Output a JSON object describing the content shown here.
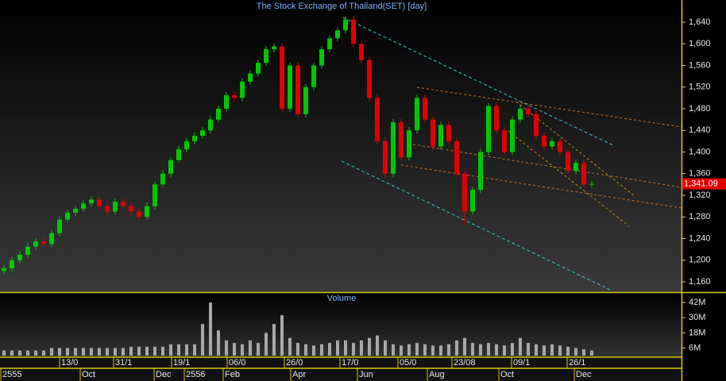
{
  "chart_data": {
    "type": "candlestick",
    "title": "The Stock Exchange of Thailand(SET) [day]",
    "up_color": "#00c800",
    "down_color": "#e00000",
    "open": [
      1180,
      1185,
      1200,
      1210,
      1225,
      1235,
      1230,
      1250,
      1275,
      1288,
      1295,
      1305,
      1312,
      1300,
      1290,
      1308,
      1300,
      1290,
      1280,
      1300,
      1340,
      1360,
      1385,
      1405,
      1420,
      1430,
      1440,
      1460,
      1480,
      1505,
      1500,
      1530,
      1545,
      1565,
      1590,
      1595,
      1480,
      1560,
      1470,
      1520,
      1560,
      1590,
      1610,
      1625,
      1645,
      1600,
      1570,
      1500,
      1420,
      1360,
      1455,
      1390,
      1440,
      1500,
      1460,
      1410,
      1450,
      1420,
      1360,
      1290,
      1330,
      1400,
      1485,
      1440,
      1400,
      1460,
      1480,
      1470,
      1430,
      1410,
      1420,
      1400,
      1365,
      1380,
      1340
    ],
    "high": [
      1191,
      1206,
      1216,
      1231,
      1241,
      1241,
      1256,
      1281,
      1294,
      1301,
      1311,
      1318,
      1318,
      1306,
      1314,
      1314,
      1306,
      1296,
      1306,
      1346,
      1366,
      1391,
      1411,
      1426,
      1436,
      1446,
      1466,
      1486,
      1511,
      1511,
      1536,
      1551,
      1571,
      1596,
      1601,
      1601,
      1566,
      1566,
      1526,
      1566,
      1596,
      1616,
      1631,
      1651,
      1651,
      1606,
      1576,
      1506,
      1426,
      1461,
      1461,
      1446,
      1506,
      1506,
      1466,
      1456,
      1456,
      1426,
      1366,
      1336,
      1406,
      1491,
      1491,
      1446,
      1466,
      1486,
      1486,
      1476,
      1436,
      1426,
      1426,
      1406,
      1386,
      1386,
      1347
    ],
    "low": [
      1174,
      1179,
      1194,
      1204,
      1219,
      1224,
      1224,
      1244,
      1269,
      1282,
      1289,
      1299,
      1294,
      1284,
      1284,
      1294,
      1284,
      1274,
      1274,
      1294,
      1334,
      1354,
      1379,
      1399,
      1414,
      1424,
      1434,
      1454,
      1474,
      1494,
      1494,
      1524,
      1539,
      1559,
      1584,
      1474,
      1474,
      1464,
      1464,
      1514,
      1554,
      1584,
      1604,
      1619,
      1594,
      1564,
      1494,
      1414,
      1354,
      1354,
      1384,
      1384,
      1434,
      1454,
      1404,
      1404,
      1414,
      1354,
      1265,
      1284,
      1324,
      1394,
      1434,
      1394,
      1394,
      1454,
      1464,
      1424,
      1404,
      1404,
      1394,
      1359,
      1359,
      1334,
      1334
    ],
    "close": [
      1185,
      1200,
      1210,
      1225,
      1235,
      1230,
      1250,
      1275,
      1288,
      1295,
      1305,
      1312,
      1300,
      1290,
      1308,
      1300,
      1290,
      1280,
      1300,
      1340,
      1360,
      1385,
      1405,
      1420,
      1430,
      1440,
      1460,
      1480,
      1505,
      1500,
      1530,
      1545,
      1565,
      1590,
      1595,
      1480,
      1560,
      1470,
      1520,
      1560,
      1590,
      1610,
      1625,
      1645,
      1600,
      1570,
      1500,
      1420,
      1360,
      1455,
      1390,
      1440,
      1500,
      1460,
      1410,
      1450,
      1420,
      1360,
      1290,
      1330,
      1400,
      1485,
      1440,
      1400,
      1460,
      1480,
      1470,
      1430,
      1410,
      1420,
      1400,
      1365,
      1380,
      1340,
      1341.09
    ],
    "ylim": [
      1141,
      1681
    ],
    "yticks": [
      {
        "value": 1160,
        "label": "1,160"
      },
      {
        "value": 1200,
        "label": "1,200"
      },
      {
        "value": 1240,
        "label": "1,240"
      },
      {
        "value": 1280,
        "label": "1,280"
      },
      {
        "value": 1320,
        "label": "1,320"
      },
      {
        "value": 1360,
        "label": "1,360"
      },
      {
        "value": 1400,
        "label": "1,400"
      },
      {
        "value": 1440,
        "label": "1,440"
      },
      {
        "value": 1480,
        "label": "1,480"
      },
      {
        "value": 1520,
        "label": "1,520"
      },
      {
        "value": 1560,
        "label": "1,560"
      },
      {
        "value": 1600,
        "label": "1,600"
      },
      {
        "value": 1640,
        "label": "1,640"
      }
    ],
    "last_price": {
      "value": 1341.09,
      "label": "1,341.09"
    },
    "volume": {
      "title": "Volume",
      "color": "#a8a8a8",
      "values": [
        4,
        4,
        4,
        4,
        4,
        4,
        6,
        6,
        6,
        6,
        6,
        6,
        6,
        6,
        6,
        6,
        7,
        7,
        7,
        7,
        7,
        9,
        9,
        9,
        9,
        25,
        42,
        20,
        12,
        10,
        9,
        12,
        10,
        18,
        25,
        32,
        14,
        10,
        9,
        8,
        9,
        10,
        12,
        12,
        10,
        12,
        14,
        16,
        12,
        9,
        8,
        9,
        10,
        9,
        8,
        8,
        9,
        12,
        14,
        10,
        9,
        10,
        9,
        8,
        10,
        14,
        10,
        9,
        8,
        9,
        8,
        7,
        6,
        5,
        4
      ],
      "ylim": [
        0,
        49
      ],
      "yticks": [
        {
          "value": 6,
          "label": "6M"
        },
        {
          "value": 18,
          "label": "18M"
        },
        {
          "value": 30,
          "label": "30M"
        },
        {
          "value": 42,
          "label": "42M"
        }
      ]
    },
    "x_labels_top": [
      "13/0",
      "31/1",
      "19/1",
      "06/0",
      "26/0",
      "17/0",
      "05/0",
      "23/08",
      "09/1",
      "26/1"
    ],
    "x_labels_bottom": [
      "2555",
      "Oct",
      "Dec",
      "2556",
      "Feb",
      "Apr",
      "Jun",
      "Aug",
      "Oct",
      "Dec"
    ]
  }
}
